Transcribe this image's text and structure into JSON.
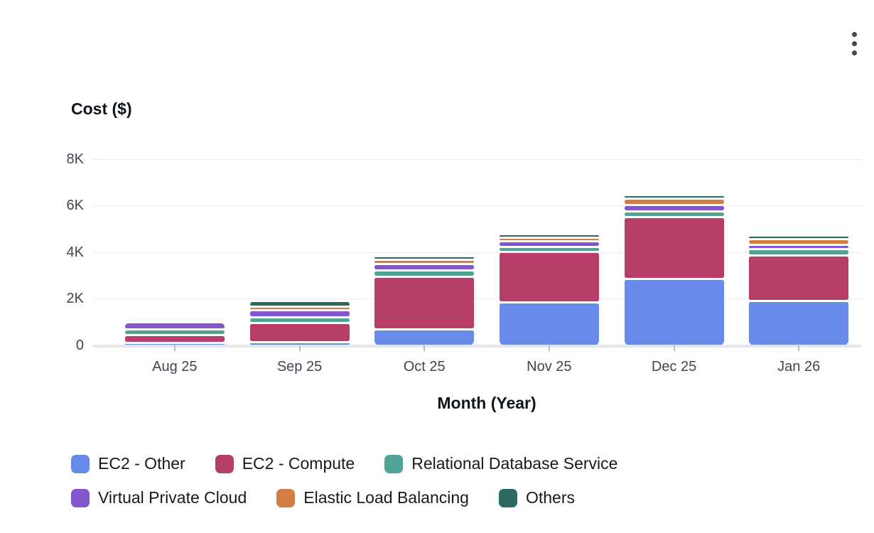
{
  "ui": {
    "menu_icon": "vertical-ellipsis",
    "background_color": "#ffffff",
    "grid_color": "#e9ebed",
    "axis_line_color": "#e4e7eb",
    "axis_text_color": "#424650",
    "title_text_color": "#0f141a"
  },
  "chart_data": {
    "type": "bar",
    "stacked": true,
    "title": "",
    "ylabel": "Cost ($)",
    "xlabel": "Month (Year)",
    "ylim": [
      0,
      8000
    ],
    "grid": true,
    "legend_position": "bottom",
    "y_ticks": [
      {
        "label": "0",
        "value": 0
      },
      {
        "label": "2K",
        "value": 2000
      },
      {
        "label": "4K",
        "value": 4000
      },
      {
        "label": "6K",
        "value": 6000
      },
      {
        "label": "8K",
        "value": 8000
      }
    ],
    "categories": [
      "Aug 25",
      "Sep 25",
      "Oct 25",
      "Nov 25",
      "Dec 25",
      "Jan 26"
    ],
    "series": [
      {
        "name": "EC2 - Other",
        "color": "#688ae8",
        "values": [
          80,
          170,
          720,
          1880,
          2900,
          1950
        ]
      },
      {
        "name": "EC2 - Compute",
        "color": "#b53d68",
        "values": [
          330,
          830,
          2250,
          2180,
          2650,
          1950
        ]
      },
      {
        "name": "Relational Database Service",
        "color": "#4ea593",
        "values": [
          240,
          250,
          260,
          220,
          250,
          280
        ]
      },
      {
        "name": "Virtual Private Cloud",
        "color": "#8456ce",
        "values": [
          300,
          300,
          290,
          240,
          270,
          190
        ]
      },
      {
        "name": "Elastic Load Balancing",
        "color": "#d57e44",
        "values": [
          0,
          160,
          190,
          140,
          290,
          230
        ]
      },
      {
        "name": "Others",
        "color": "#2c6a60",
        "values": [
          0,
          250,
          90,
          70,
          70,
          90
        ]
      }
    ],
    "totals_approx": [
      950,
      1960,
      3800,
      4730,
      6430,
      4690
    ]
  }
}
